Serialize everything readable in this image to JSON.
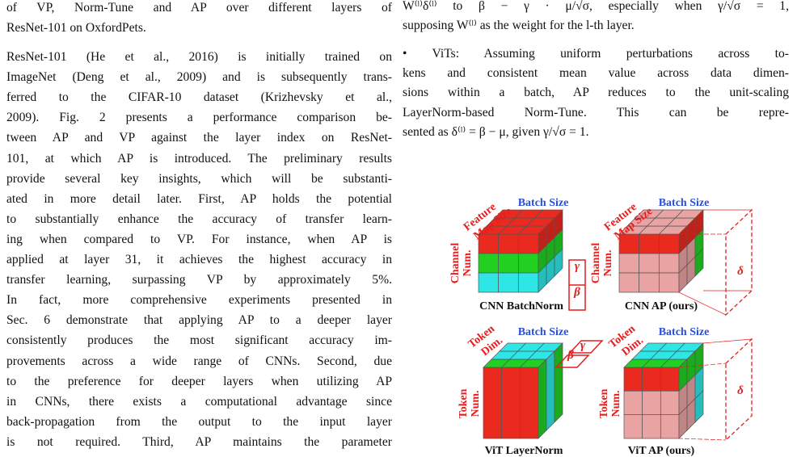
{
  "left": {
    "caption": [
      "of VP, Norm-Tune and AP over different layers of",
      "ResNet-101 on OxfordPets."
    ],
    "paragraph": [
      "ResNet-101 (He et al., 2016) is initially trained on",
      "ImageNet (Deng et al., 2009) and is subsequently trans-",
      "ferred to the CIFAR-10 dataset (Krizhevsky et al.,",
      "2009). Fig. 2 presents a performance comparison be-",
      "tween AP and VP against the layer index on ResNet-",
      "101, at which AP is introduced. The preliminary results",
      "provide several key insights, which will be substanti-",
      "ated in more detail later. First, AP holds the potential",
      "to substantially enhance the accuracy of transfer learn-",
      "ing when compared to VP. For instance, when AP is",
      "applied at layer 31, it achieves the highest accuracy in",
      "transfer learning, surpassing VP by approximately 5%.",
      "In fact, more comprehensive experiments presented in",
      "Sec. 6 demonstrate that applying AP to a deeper layer",
      "consistently produces the most significant accuracy im-",
      "provements across a wide range of CNNs. Second, due",
      "to the preference for deeper layers when utilizing AP",
      "in CNNs, there exists a computational advantage since",
      "back-propagation from the output to the input layer",
      "is not required. Third, AP maintains the parameter"
    ]
  },
  "right": {
    "top": [
      "W⁽ˡ⁾δ⁽ˡ⁾ to β − γ · μ/√σ, especially when γ/√σ = 1,",
      "supposing W⁽ˡ⁾ as the weight for the l-th layer."
    ],
    "bullet": [
      "• ViTs: Assuming uniform perturbations across to-",
      "kens and consistent mean value across data dimen-",
      "sions within a batch, AP reduces to the unit-scaling",
      "LayerNorm-based Norm-Tune. This can be repre-",
      "sented as δ⁽ˡ⁾ = β − μ, given γ/√σ = 1."
    ]
  },
  "figure": {
    "panels": [
      {
        "depth_label": [
          "Feature",
          "Map Size"
        ],
        "batch_label": "Batch Size",
        "side_label": [
          "Channel",
          "Num."
        ],
        "params": [
          "γ",
          "β"
        ],
        "caption": "CNN BatchNorm"
      },
      {
        "depth_label": [
          "Feature",
          "Map Size"
        ],
        "batch_label": "Batch Size",
        "side_label": [
          "Channel",
          "Num."
        ],
        "params": [
          "δ"
        ],
        "caption": "CNN AP (ours)"
      },
      {
        "depth_label": [
          "Token",
          "Dim."
        ],
        "batch_label": "Batch Size",
        "side_label": [
          "Token",
          "Num."
        ],
        "params": [
          "γ",
          "β"
        ],
        "caption": "ViT LayerNorm"
      },
      {
        "depth_label": [
          "Token",
          "Dim."
        ],
        "batch_label": "Batch Size",
        "side_label": [
          "Token",
          "Num."
        ],
        "params": [
          "δ"
        ],
        "caption": "ViT AP (ours)"
      }
    ]
  }
}
